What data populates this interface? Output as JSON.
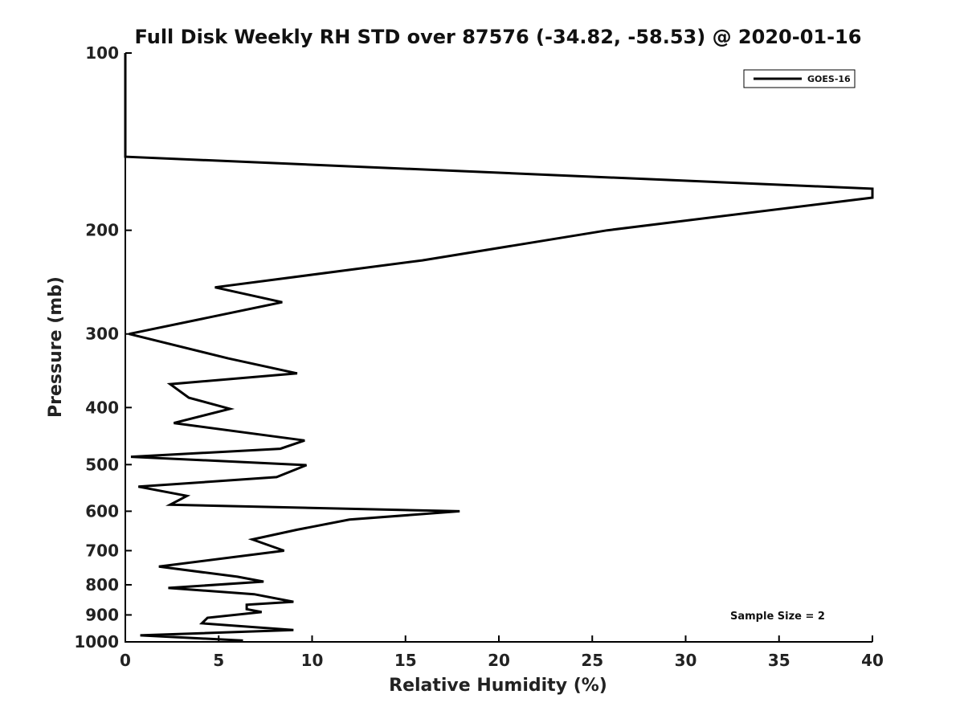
{
  "chart_data": {
    "type": "line",
    "title": "Full Disk Weekly RH STD over 87576 (-34.82, -58.53) @ 2020-01-16",
    "xlabel": "Relative Humidity (%)",
    "ylabel": "Pressure (mb)",
    "xlim": [
      0,
      40
    ],
    "ylim": [
      100,
      1000
    ],
    "yscale": "log",
    "reverse_y": true,
    "xticks": [
      0,
      5,
      10,
      15,
      20,
      25,
      30,
      35,
      40
    ],
    "yticks": [
      100,
      200,
      300,
      400,
      500,
      600,
      700,
      800,
      900,
      1000
    ],
    "grid": false,
    "legend_position": "top-right",
    "series": [
      {
        "name": "GOES-16",
        "color": "#000000",
        "x": [
          0,
          0,
          0,
          40,
          40,
          25.8,
          15.9,
          4.8,
          8.4,
          0.2,
          5.5,
          9.2,
          2.4,
          3.4,
          5.6,
          2.6,
          9.6,
          8.3,
          0.3,
          9.7,
          8.1,
          0.7,
          3.3,
          2.4,
          17.9,
          12.0,
          9.2,
          6.8,
          8.5,
          1.8,
          6.0,
          7.4,
          2.3,
          6.9,
          9.0,
          6.5,
          6.5,
          7.3,
          4.4,
          4.1,
          9.0,
          0.8,
          6.3
        ],
        "y": [
          100,
          130,
          150,
          170,
          176,
          200,
          225,
          250,
          265,
          300,
          330,
          350,
          365,
          385,
          402,
          425,
          455,
          470,
          485,
          501,
          525,
          545,
          565,
          585,
          600,
          620,
          645,
          670,
          700,
          745,
          775,
          790,
          810,
          830,
          855,
          865,
          880,
          890,
          910,
          930,
          955,
          975,
          995
        ]
      }
    ],
    "annotation": "Sample Size = 2"
  }
}
